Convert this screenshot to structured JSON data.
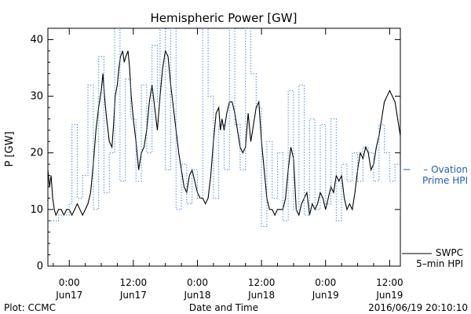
{
  "chart_data": {
    "type": "line",
    "title": "Hemispheric Power [GW]",
    "ylabel": "P [GW]",
    "xlabel": "Date and Time",
    "ylim": [
      0,
      42
    ],
    "xlim_hours": [
      -4,
      62
    ],
    "yticks": [
      0,
      10,
      20,
      30,
      40
    ],
    "xticks": [
      {
        "h": 0,
        "time": "0:00",
        "date": "Jun17"
      },
      {
        "h": 12,
        "time": "12:00",
        "date": "Jun17"
      },
      {
        "h": 24,
        "time": "0:00",
        "date": "Jun18"
      },
      {
        "h": 36,
        "time": "12:00",
        "date": "Jun18"
      },
      {
        "h": 48,
        "time": "0:00",
        "date": "Jun19"
      },
      {
        "h": 60,
        "time": "12:00",
        "date": "Jun19"
      }
    ],
    "grid": false,
    "series": [
      {
        "name": "SWPC 5-min HPI",
        "label_lines": [
          "SWPC",
          "5–min HPI"
        ],
        "color": "#000000",
        "style": "solid",
        "points": [
          [
            -4,
            17
          ],
          [
            -3.7,
            14
          ],
          [
            -3.4,
            16
          ],
          [
            -3.1,
            12
          ],
          [
            -2.8,
            10
          ],
          [
            -2.5,
            9
          ],
          [
            -2,
            10
          ],
          [
            -1.5,
            10
          ],
          [
            -1,
            9
          ],
          [
            -0.5,
            10
          ],
          [
            0,
            10
          ],
          [
            0.5,
            9
          ],
          [
            1,
            10
          ],
          [
            1.5,
            11
          ],
          [
            2,
            10
          ],
          [
            2.5,
            9
          ],
          [
            3,
            10
          ],
          [
            3.5,
            11
          ],
          [
            4,
            13
          ],
          [
            4.5,
            18
          ],
          [
            5,
            24
          ],
          [
            5.5,
            28
          ],
          [
            6,
            31
          ],
          [
            6.3,
            34
          ],
          [
            6.6,
            30
          ],
          [
            7,
            26
          ],
          [
            7.5,
            22
          ],
          [
            8,
            21
          ],
          [
            8.3,
            25
          ],
          [
            8.6,
            30
          ],
          [
            9,
            32
          ],
          [
            9.3,
            35
          ],
          [
            9.6,
            37
          ],
          [
            10,
            38
          ],
          [
            10.3,
            36
          ],
          [
            10.6,
            37
          ],
          [
            11,
            38
          ],
          [
            11.3,
            35
          ],
          [
            11.6,
            30
          ],
          [
            12,
            26
          ],
          [
            12.5,
            22
          ],
          [
            13,
            17
          ],
          [
            13.5,
            20
          ],
          [
            14,
            21
          ],
          [
            14.5,
            24
          ],
          [
            15,
            29
          ],
          [
            15.5,
            32
          ],
          [
            16,
            28
          ],
          [
            16.5,
            24
          ],
          [
            17,
            30
          ],
          [
            17.5,
            35
          ],
          [
            18,
            38
          ],
          [
            18.5,
            37
          ],
          [
            19,
            32
          ],
          [
            19.5,
            28
          ],
          [
            20,
            24
          ],
          [
            20.5,
            20
          ],
          [
            21,
            17
          ],
          [
            21.5,
            14
          ],
          [
            22,
            13
          ],
          [
            22.5,
            16
          ],
          [
            23,
            17
          ],
          [
            23.5,
            15
          ],
          [
            24,
            13
          ],
          [
            24.5,
            12
          ],
          [
            25,
            12
          ],
          [
            25.5,
            11
          ],
          [
            26,
            12
          ],
          [
            26.5,
            16
          ],
          [
            27,
            22
          ],
          [
            27.5,
            27
          ],
          [
            28,
            28
          ],
          [
            28.3,
            24
          ],
          [
            28.6,
            26
          ],
          [
            29,
            24
          ],
          [
            29.5,
            27
          ],
          [
            30,
            29
          ],
          [
            30.5,
            29
          ],
          [
            31,
            27
          ],
          [
            31.5,
            24
          ],
          [
            32,
            21
          ],
          [
            32.5,
            20
          ],
          [
            33,
            21
          ],
          [
            33.5,
            27
          ],
          [
            34,
            22
          ],
          [
            34.5,
            25
          ],
          [
            35,
            28
          ],
          [
            35.5,
            29
          ],
          [
            36,
            22
          ],
          [
            36.5,
            17
          ],
          [
            37,
            12
          ],
          [
            37.5,
            10
          ],
          [
            38,
            10
          ],
          [
            38.5,
            9
          ],
          [
            39,
            10
          ],
          [
            39.5,
            10
          ],
          [
            40,
            10
          ],
          [
            40.5,
            12
          ],
          [
            41,
            17
          ],
          [
            41.5,
            21
          ],
          [
            42,
            19
          ],
          [
            42.5,
            10
          ],
          [
            43,
            9
          ],
          [
            43.5,
            11
          ],
          [
            44,
            12
          ],
          [
            44.5,
            13
          ],
          [
            45,
            9
          ],
          [
            45.5,
            11
          ],
          [
            46,
            10
          ],
          [
            46.5,
            11
          ],
          [
            47,
            13
          ],
          [
            47.5,
            12
          ],
          [
            48,
            10
          ],
          [
            48.5,
            12
          ],
          [
            49,
            14
          ],
          [
            49.5,
            13
          ],
          [
            50,
            16
          ],
          [
            50.5,
            15
          ],
          [
            51,
            16
          ],
          [
            51.5,
            12
          ],
          [
            52,
            10
          ],
          [
            52.5,
            11
          ],
          [
            53,
            10
          ],
          [
            53.5,
            13
          ],
          [
            54,
            17
          ],
          [
            54.5,
            20
          ],
          [
            55,
            19
          ],
          [
            55.5,
            21
          ],
          [
            56,
            20
          ],
          [
            56.5,
            17
          ],
          [
            57,
            18
          ],
          [
            57.5,
            21
          ],
          [
            58,
            23
          ],
          [
            58.5,
            26
          ],
          [
            59,
            29
          ],
          [
            59.5,
            30
          ],
          [
            60,
            31
          ],
          [
            60.5,
            30
          ],
          [
            61,
            29
          ],
          [
            61.5,
            26
          ],
          [
            62,
            23
          ],
          [
            62.5,
            21
          ],
          [
            63,
            18
          ],
          [
            63.5,
            15
          ],
          [
            64,
            11
          ]
        ]
      },
      {
        "name": "Ovation Prime HPI",
        "label_lines": [
          "– Ovation",
          "Prime HPI"
        ],
        "color": "#3a7fd9",
        "style": "dotted-step",
        "points": [
          [
            -4,
            8
          ],
          [
            -2,
            9
          ],
          [
            0,
            11
          ],
          [
            0.5,
            25
          ],
          [
            1.5,
            12
          ],
          [
            2.5,
            16
          ],
          [
            3.5,
            32
          ],
          [
            4.5,
            10
          ],
          [
            5.5,
            37
          ],
          [
            6.5,
            13
          ],
          [
            7.5,
            20
          ],
          [
            8.5,
            42
          ],
          [
            9.5,
            15
          ],
          [
            10.5,
            33
          ],
          [
            11.5,
            26
          ],
          [
            12.5,
            15
          ],
          [
            13.5,
            32
          ],
          [
            14.5,
            20
          ],
          [
            15.5,
            39
          ],
          [
            16.5,
            29
          ],
          [
            17,
            42
          ],
          [
            18,
            17
          ],
          [
            19,
            42
          ],
          [
            20,
            10
          ],
          [
            21,
            18
          ],
          [
            22,
            11
          ],
          [
            23,
            17
          ],
          [
            24,
            12
          ],
          [
            25,
            42
          ],
          [
            26,
            30
          ],
          [
            27,
            12
          ],
          [
            28,
            25
          ],
          [
            29,
            17
          ],
          [
            30,
            42
          ],
          [
            31,
            25
          ],
          [
            32,
            17
          ],
          [
            33,
            42
          ],
          [
            34,
            34
          ],
          [
            35,
            28
          ],
          [
            36,
            7
          ],
          [
            37,
            22
          ],
          [
            38,
            12
          ],
          [
            39,
            20
          ],
          [
            40,
            8
          ],
          [
            41,
            31
          ],
          [
            42,
            10
          ],
          [
            43,
            32
          ],
          [
            44,
            9
          ],
          [
            45,
            26
          ],
          [
            46,
            10
          ],
          [
            47,
            25
          ],
          [
            48,
            11
          ],
          [
            49,
            26
          ],
          [
            50,
            8
          ],
          [
            51,
            18
          ],
          [
            52,
            15
          ],
          [
            53,
            20
          ],
          [
            54,
            15
          ],
          [
            55,
            21
          ],
          [
            56,
            20
          ],
          [
            57,
            15
          ],
          [
            58,
            25
          ],
          [
            59,
            20
          ],
          [
            60,
            15
          ],
          [
            61,
            18
          ],
          [
            62,
            9
          ],
          [
            63,
            12
          ],
          [
            63.8,
            8
          ]
        ]
      }
    ]
  },
  "footer": {
    "plot_by": "Plot: CCMC",
    "timestamp": "2016/06/19 20:10:10"
  }
}
